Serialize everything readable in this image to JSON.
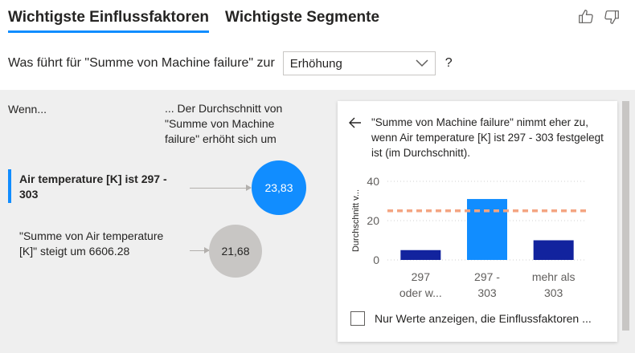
{
  "tabs": [
    {
      "label": "Wichtigste Einflussfaktoren"
    },
    {
      "label": "Wichtigste Segmente"
    }
  ],
  "question": {
    "prefix": "Was führt für \"Summe von Machine failure\" zur",
    "dropdown_value": "Erhöhung",
    "help": "?"
  },
  "analysis": {
    "when_label": "Wenn...",
    "avg_label": "... Der Durchschnitt von \"Summe von Machine failure\" erhöht sich um",
    "factors": [
      {
        "label": "Air temperature [K] ist 297 - 303",
        "value": "23,83"
      },
      {
        "label": "\"Summe von Air temperature [K]\" steigt um 6606.28",
        "value": "21,68"
      }
    ]
  },
  "detail": {
    "back_icon": "back-arrow-icon",
    "text": "\"Summe von Machine failure\" nimmt eher zu, wenn Air temperature [K] ist 297 - 303 festgelegt ist (im Durchschnitt).",
    "checkbox_label": "Nur Werte anzeigen, die Einflussfaktoren ..."
  },
  "colors": {
    "accent": "#118dff",
    "bar_dark": "#12239e",
    "reference_line": "#f4a582",
    "bubble_grey": "#c8c6c4",
    "panel_bg": "#efefef"
  },
  "chart_data": {
    "type": "bar",
    "categories": [
      [
        "297",
        "oder w..."
      ],
      [
        "297 -",
        "303"
      ],
      [
        "mehr als",
        "303"
      ]
    ],
    "values": [
      5,
      31,
      10
    ],
    "highlight_index": 1,
    "ylabel": "Durchschnitt v...",
    "yticks": [
      0,
      20,
      40
    ],
    "ylim": [
      0,
      40
    ],
    "reference_value": 25,
    "grid": true
  }
}
